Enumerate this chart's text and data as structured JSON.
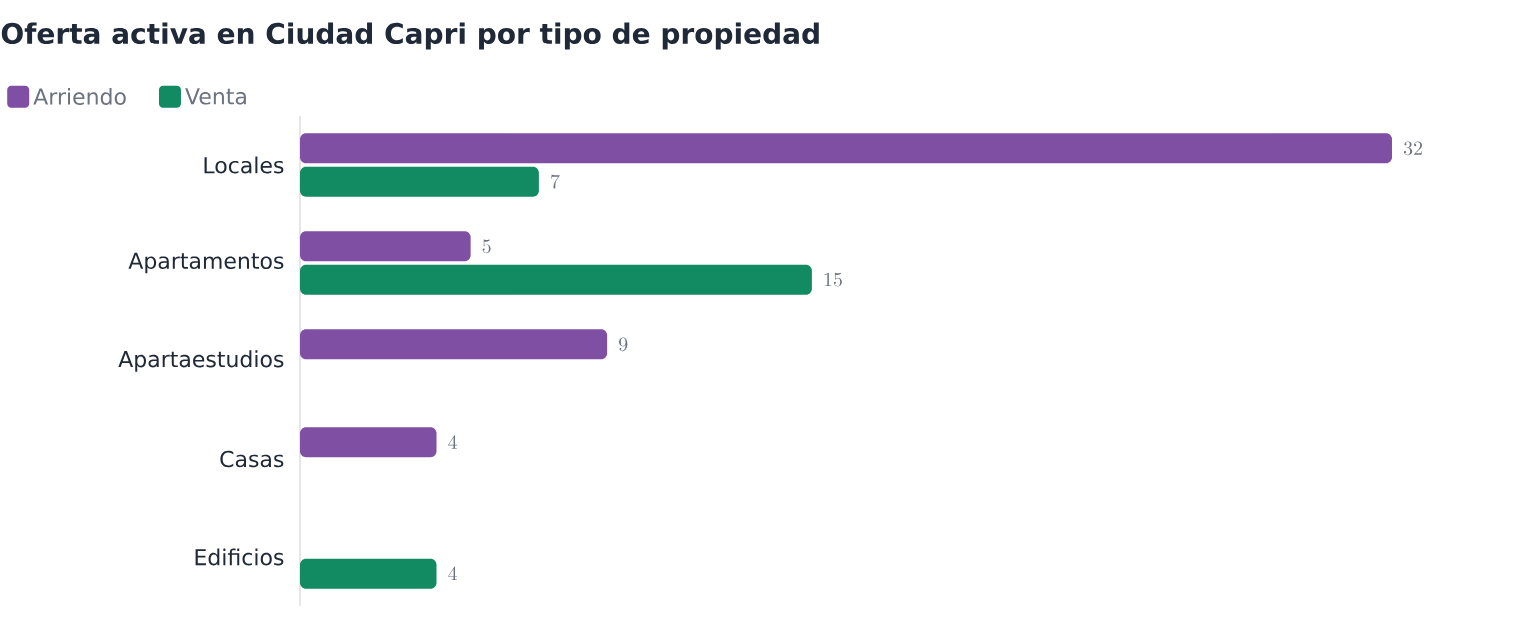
{
  "chart_data": {
    "type": "bar",
    "orientation": "horizontal",
    "title": "Oferta activa en Ciudad Capri por tipo de propiedad",
    "categories": [
      "Locales",
      "Apartamentos",
      "Apartaestudios",
      "Casas",
      "Edificios"
    ],
    "series": [
      {
        "name": "Arriendo",
        "color": "#7f4fa3",
        "values": [
          32,
          5,
          9,
          4,
          null
        ]
      },
      {
        "name": "Venta",
        "color": "#128a62",
        "values": [
          7,
          15,
          null,
          null,
          4
        ]
      }
    ],
    "data_labels": true,
    "legend": "top left"
  }
}
